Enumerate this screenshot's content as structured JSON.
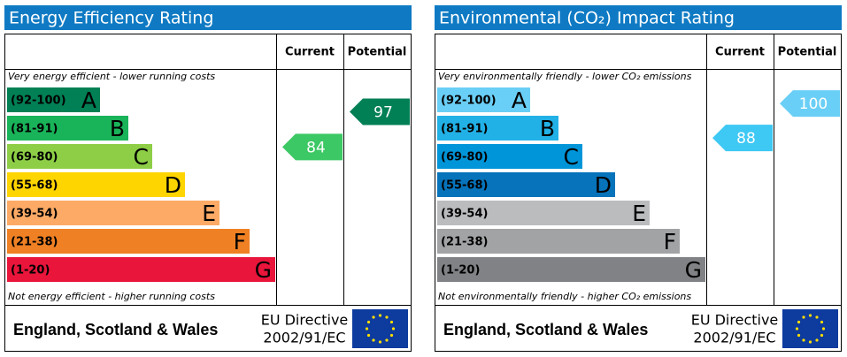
{
  "chart_data": [
    {
      "type": "epc",
      "title": "Energy Efficiency Rating",
      "columns": [
        "Current",
        "Potential"
      ],
      "top_note": "Very energy efficient - lower running costs",
      "bottom_note": "Not energy efficient - higher running costs",
      "bands": [
        {
          "range": "(92-100)",
          "letter": "A",
          "color": "#008054"
        },
        {
          "range": "(81-91)",
          "letter": "B",
          "color": "#19b459"
        },
        {
          "range": "(69-80)",
          "letter": "C",
          "color": "#8dce46"
        },
        {
          "range": "(55-68)",
          "letter": "D",
          "color": "#ffd500"
        },
        {
          "range": "(39-54)",
          "letter": "E",
          "color": "#fcaa65"
        },
        {
          "range": "(21-38)",
          "letter": "F",
          "color": "#ef8023"
        },
        {
          "range": "(1-20)",
          "letter": "G",
          "color": "#e9153b"
        }
      ],
      "current": 84,
      "current_color": "#3cc864",
      "potential": 97,
      "potential_color": "#008054",
      "footer": "England, Scotland & Wales",
      "directive": [
        "EU Directive",
        "2002/91/EC"
      ]
    },
    {
      "type": "epc",
      "title": "Environmental (CO₂) Impact Rating",
      "columns": [
        "Current",
        "Potential"
      ],
      "top_note": "Very environmentally friendly - lower CO₂ emissions",
      "bottom_note": "Not environmentally friendly - higher CO₂ emissions",
      "bands": [
        {
          "range": "(92-100)",
          "letter": "A",
          "color": "#6acff6"
        },
        {
          "range": "(81-91)",
          "letter": "B",
          "color": "#22b1e6"
        },
        {
          "range": "(69-80)",
          "letter": "C",
          "color": "#0095d9"
        },
        {
          "range": "(55-68)",
          "letter": "D",
          "color": "#0673bb"
        },
        {
          "range": "(39-54)",
          "letter": "E",
          "color": "#bbbcbe"
        },
        {
          "range": "(21-38)",
          "letter": "F",
          "color": "#a2a3a5"
        },
        {
          "range": "(1-20)",
          "letter": "G",
          "color": "#808285"
        }
      ],
      "current": 88,
      "current_color": "#3ec8f4",
      "potential": 100,
      "potential_color": "#6acff6",
      "footer": "England, Scotland & Wales",
      "directive": [
        "EU Directive",
        "2002/91/EC"
      ]
    }
  ]
}
